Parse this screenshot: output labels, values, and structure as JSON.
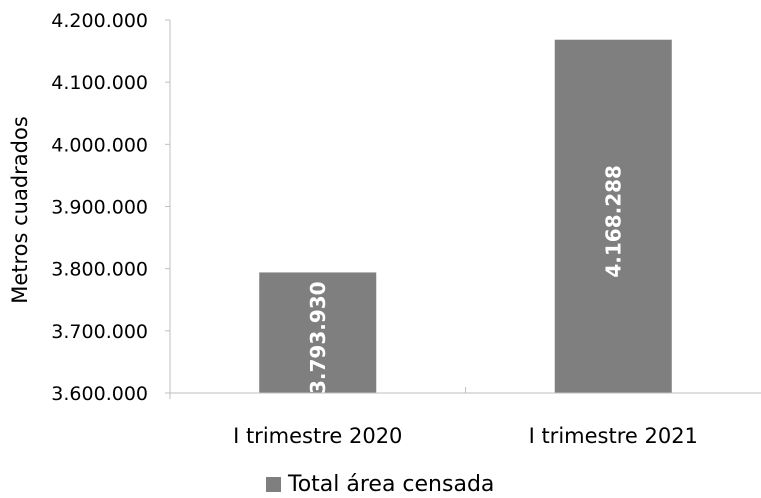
{
  "colors": {
    "bar": "#7f7f7f",
    "axis": "#bfbfbf"
  },
  "chart_data": {
    "type": "bar",
    "categories": [
      "I trimestre 2020",
      "I trimestre 2021"
    ],
    "series": [
      {
        "name": "Total área censada",
        "values": [
          3793930,
          4168288
        ]
      }
    ],
    "data_labels": [
      "3.793.930",
      "4.168.288"
    ],
    "ylabel": "Metros cuadrados",
    "xlabel": "",
    "ylim": [
      3600000,
      4200000
    ],
    "yticks": [
      3600000,
      3700000,
      3800000,
      3900000,
      4000000,
      4100000,
      4200000
    ],
    "ytick_labels": [
      "3.600.000",
      "3.700.000",
      "3.800.000",
      "3.900.000",
      "4.000.000",
      "4.100.000",
      "4.200.000"
    ],
    "grid": false,
    "legend_position": "bottom"
  }
}
